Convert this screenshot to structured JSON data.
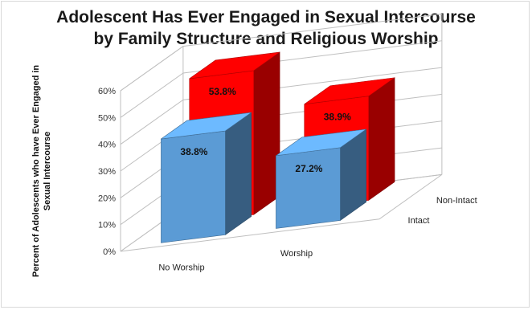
{
  "chart_data": {
    "type": "bar",
    "title_line1": "Adolescent Has Ever Engaged in Sexual Intercourse",
    "title_line2": "by Family Structure and Religious Worship",
    "ylabel_line1": "Percent of Adolescents who have Ever Engaged in",
    "ylabel_line2": "Sexual Intercourse",
    "categories": [
      "No Worship",
      "Worship"
    ],
    "series": [
      {
        "name": "Intact",
        "values": [
          38.8,
          27.2
        ],
        "color": "#5b9bd5"
      },
      {
        "name": "Non-Intact",
        "values": [
          53.8,
          38.9
        ],
        "color": "#ff0000"
      }
    ],
    "data_labels": [
      [
        "38.8%",
        "27.2%"
      ],
      [
        "53.8%",
        "38.9%"
      ]
    ],
    "yticks": [
      "0%",
      "10%",
      "20%",
      "30%",
      "40%",
      "50%",
      "60%"
    ],
    "ylim": [
      0,
      60
    ],
    "grid": true,
    "depth_labels": [
      "Intact",
      "Non-Intact"
    ]
  }
}
